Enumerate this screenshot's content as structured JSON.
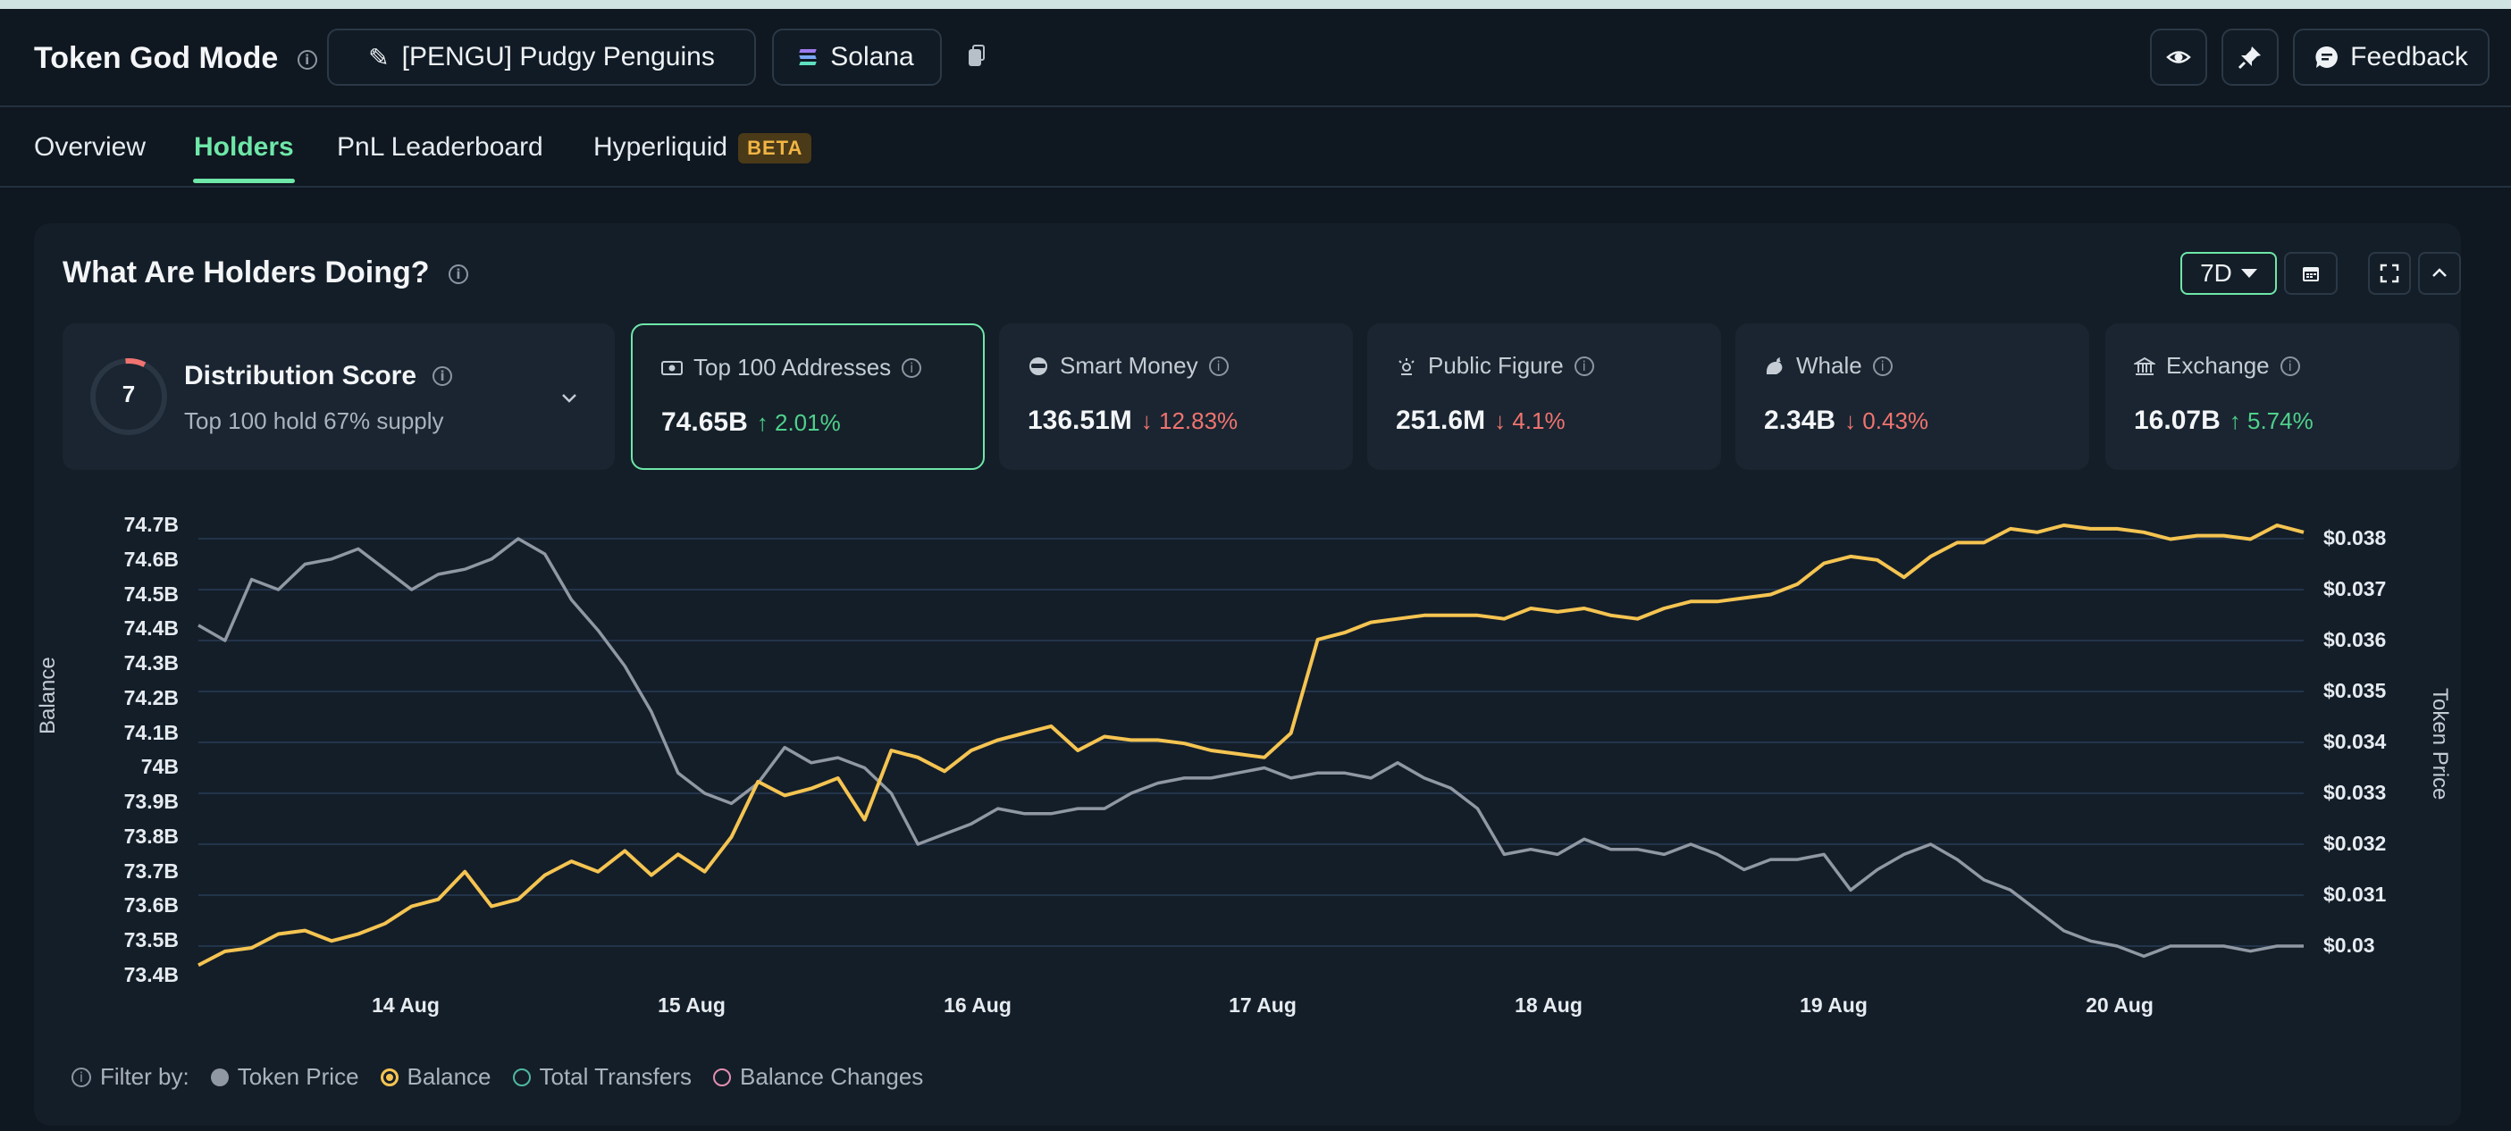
{
  "header": {
    "title": "Token God Mode",
    "token_label": "[PENGU] Pudgy Penguins",
    "chain_label": "Solana",
    "feedback_label": "Feedback"
  },
  "tabs": [
    {
      "label": "Overview"
    },
    {
      "label": "Holders"
    },
    {
      "label": "PnL Leaderboard"
    },
    {
      "label": "Hyperliquid",
      "badge": "BETA"
    }
  ],
  "panel": {
    "title": "What Are Holders Doing?",
    "range": "7D"
  },
  "distribution": {
    "score": "7",
    "label": "Distribution Score",
    "subtitle": "Top 100 hold 67% supply"
  },
  "cards": [
    {
      "label": "Top 100 Addresses",
      "value": "74.65B",
      "change": "2.01%",
      "dir": "up"
    },
    {
      "label": "Smart Money",
      "value": "136.51M",
      "change": "12.83%",
      "dir": "down"
    },
    {
      "label": "Public Figure",
      "value": "251.6M",
      "change": "4.1%",
      "dir": "down"
    },
    {
      "label": "Whale",
      "value": "2.34B",
      "change": "0.43%",
      "dir": "down"
    },
    {
      "label": "Exchange",
      "value": "16.07B",
      "change": "5.74%",
      "dir": "up"
    }
  ],
  "legend": {
    "prefix": "Filter by:",
    "items": [
      "Token Price",
      "Balance",
      "Total Transfers",
      "Balance Changes"
    ]
  },
  "chart_data": {
    "type": "line",
    "xlabel": "",
    "ylabel": "Balance",
    "y2label": "Token Price",
    "x_ticks": [
      "14 Aug",
      "15 Aug",
      "16 Aug",
      "17 Aug",
      "18 Aug",
      "19 Aug",
      "20 Aug"
    ],
    "y_ticks": [
      "74.7B",
      "74.6B",
      "74.5B",
      "74.4B",
      "74.3B",
      "74.2B",
      "74.1B",
      "74B",
      "73.9B",
      "73.8B",
      "73.7B",
      "73.6B",
      "73.5B",
      "73.4B"
    ],
    "y2_ticks": [
      "$0.038",
      "$0.037",
      "$0.036",
      "$0.035",
      "$0.034",
      "$0.033",
      "$0.032",
      "$0.031",
      "$0.03"
    ],
    "ylim": [
      73.4,
      74.7
    ],
    "y2lim": [
      0.03,
      0.038
    ],
    "grid": true,
    "series": [
      {
        "name": "Balance",
        "color": "#f5c451",
        "values": [
          73.43,
          73.47,
          73.48,
          73.52,
          73.53,
          73.5,
          73.52,
          73.55,
          73.6,
          73.62,
          73.7,
          73.6,
          73.62,
          73.69,
          73.73,
          73.7,
          73.76,
          73.69,
          73.75,
          73.7,
          73.8,
          73.96,
          73.92,
          73.94,
          73.97,
          73.85,
          74.05,
          74.03,
          73.99,
          74.05,
          74.08,
          74.1,
          74.12,
          74.05,
          74.09,
          74.08,
          74.08,
          74.07,
          74.05,
          74.04,
          74.03,
          74.1,
          74.37,
          74.39,
          74.42,
          74.43,
          74.44,
          74.44,
          74.44,
          74.43,
          74.46,
          74.45,
          74.46,
          74.44,
          74.43,
          74.46,
          74.48,
          74.48,
          74.49,
          74.5,
          74.53,
          74.59,
          74.61,
          74.6,
          74.55,
          74.61,
          74.65,
          74.65,
          74.69,
          74.68,
          74.7,
          74.69,
          74.69,
          74.68,
          74.66,
          74.67,
          74.67,
          74.66,
          74.7,
          74.68
        ]
      },
      {
        "name": "Token Price",
        "color": "#8f98a3",
        "values": [
          0.0363,
          0.036,
          0.0372,
          0.037,
          0.0375,
          0.0376,
          0.0378,
          0.0374,
          0.037,
          0.0373,
          0.0374,
          0.0376,
          0.038,
          0.0377,
          0.0368,
          0.0362,
          0.0355,
          0.0346,
          0.0334,
          0.033,
          0.0328,
          0.0332,
          0.0339,
          0.0336,
          0.0337,
          0.0335,
          0.033,
          0.032,
          0.0322,
          0.0324,
          0.0327,
          0.0326,
          0.0326,
          0.0327,
          0.0327,
          0.033,
          0.0332,
          0.0333,
          0.0333,
          0.0334,
          0.0335,
          0.0333,
          0.0334,
          0.0334,
          0.0333,
          0.0336,
          0.0333,
          0.0331,
          0.0327,
          0.0318,
          0.0319,
          0.0318,
          0.0321,
          0.0319,
          0.0319,
          0.0318,
          0.032,
          0.0318,
          0.0315,
          0.0317,
          0.0317,
          0.0318,
          0.0311,
          0.0315,
          0.0318,
          0.032,
          0.0317,
          0.0313,
          0.0311,
          0.0307,
          0.0303,
          0.0301,
          0.03,
          0.0298,
          0.03,
          0.03,
          0.03,
          0.0299,
          0.03,
          0.03
        ]
      }
    ]
  }
}
